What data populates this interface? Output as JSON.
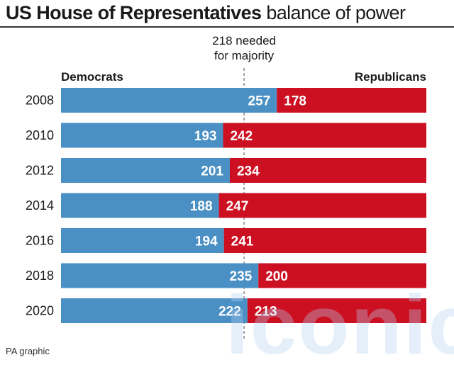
{
  "title_bold": "US House of Representatives",
  "title_light": "balance of power",
  "footer": "PA graphic",
  "watermark": "iconic",
  "colors": {
    "democrats": "#4a90c4",
    "republicans": "#cc1022",
    "text_on_bar": "#ffffff"
  },
  "chart_data": {
    "type": "bar",
    "orientation": "horizontal-stacked",
    "categories": [
      "2008",
      "2010",
      "2012",
      "2014",
      "2016",
      "2018",
      "2020"
    ],
    "series": [
      {
        "name": "Democrats",
        "values": [
          257,
          193,
          201,
          188,
          194,
          235,
          222
        ]
      },
      {
        "name": "Republicans",
        "values": [
          178,
          242,
          234,
          247,
          241,
          200,
          213
        ]
      }
    ],
    "total": 435,
    "threshold": 218,
    "threshold_label_line1": "218 needed",
    "threshold_label_line2": "for majority",
    "grid": false
  }
}
